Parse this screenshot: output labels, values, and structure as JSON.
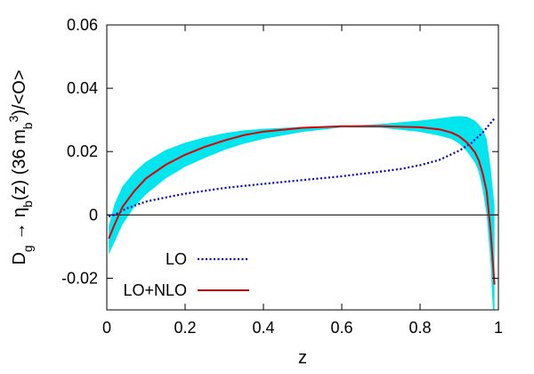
{
  "chart_data": {
    "type": "line",
    "xlabel": "z",
    "ylabel": {
      "base": "D",
      "sub1": "g",
      "arrow": " → η",
      "sub2": "b",
      "mid": "(z) (36 m",
      "sub3": "b",
      "sup": "3",
      "tail": ")/<O>"
    },
    "xlim": [
      0,
      1
    ],
    "ylim": [
      -0.03,
      0.06
    ],
    "x_ticks": [
      0,
      0.2,
      0.4,
      0.6,
      0.8,
      1
    ],
    "x_tick_labels": [
      "0",
      "0.2",
      "0.4",
      "0.6",
      "0.8",
      "1"
    ],
    "y_ticks": [
      -0.02,
      0,
      0.02,
      0.04,
      0.06
    ],
    "y_tick_labels": [
      "-0.02",
      "0",
      "0.02",
      "0.04",
      "0.06"
    ],
    "zero_line": true,
    "legend": {
      "placement": "bottom-left",
      "entries": [
        {
          "label": "LO",
          "color": "#0000cc",
          "style": "dotted"
        },
        {
          "label": "LO+NLO",
          "color": "#dd0000",
          "style": "solid"
        }
      ]
    },
    "series": [
      {
        "name": "LO",
        "color": "#0000cc",
        "style": "dotted",
        "x": [
          0.005,
          0.02,
          0.05,
          0.1,
          0.15,
          0.2,
          0.3,
          0.4,
          0.5,
          0.6,
          0.7,
          0.75,
          0.8,
          0.85,
          0.9,
          0.93,
          0.96,
          0.99
        ],
        "y": [
          -0.0005,
          0.0,
          0.002,
          0.0042,
          0.0055,
          0.0067,
          0.0085,
          0.0098,
          0.011,
          0.0122,
          0.0137,
          0.0145,
          0.0157,
          0.0174,
          0.0203,
          0.0226,
          0.026,
          0.0305
        ]
      },
      {
        "name": "LO+NLO",
        "color": "#dd0000",
        "style": "solid",
        "x": [
          0.005,
          0.02,
          0.04,
          0.07,
          0.1,
          0.15,
          0.2,
          0.25,
          0.3,
          0.35,
          0.4,
          0.5,
          0.6,
          0.7,
          0.8,
          0.85,
          0.88,
          0.9,
          0.92,
          0.94,
          0.95,
          0.96,
          0.97,
          0.98,
          0.99
        ],
        "y": [
          -0.0075,
          -0.003,
          0.0025,
          0.0075,
          0.0115,
          0.0158,
          0.019,
          0.0215,
          0.0235,
          0.0252,
          0.0263,
          0.0275,
          0.028,
          0.028,
          0.0277,
          0.027,
          0.026,
          0.0248,
          0.0228,
          0.0198,
          0.0172,
          0.013,
          0.0075,
          -0.005,
          -0.022
        ]
      }
    ],
    "band": {
      "color": "#00e5ee",
      "x": [
        0.005,
        0.02,
        0.04,
        0.07,
        0.1,
        0.15,
        0.2,
        0.25,
        0.3,
        0.35,
        0.4,
        0.5,
        0.6,
        0.7,
        0.8,
        0.85,
        0.88,
        0.9,
        0.92,
        0.94,
        0.95,
        0.96,
        0.97,
        0.98,
        0.99
      ],
      "upper": [
        -0.0035,
        0.0035,
        0.009,
        0.0135,
        0.0168,
        0.0205,
        0.0228,
        0.0245,
        0.0258,
        0.0267,
        0.0272,
        0.0278,
        0.028,
        0.0287,
        0.0298,
        0.0305,
        0.031,
        0.0312,
        0.031,
        0.0298,
        0.0285,
        0.027,
        0.024,
        0.015,
        0.003
      ],
      "lower": [
        -0.0125,
        -0.0085,
        -0.003,
        0.0025,
        0.0065,
        0.0115,
        0.0152,
        0.018,
        0.0205,
        0.0225,
        0.024,
        0.0262,
        0.0276,
        0.0275,
        0.0262,
        0.025,
        0.024,
        0.0225,
        0.02,
        0.0165,
        0.0135,
        0.008,
        0.0,
        -0.015,
        -0.04
      ]
    }
  }
}
